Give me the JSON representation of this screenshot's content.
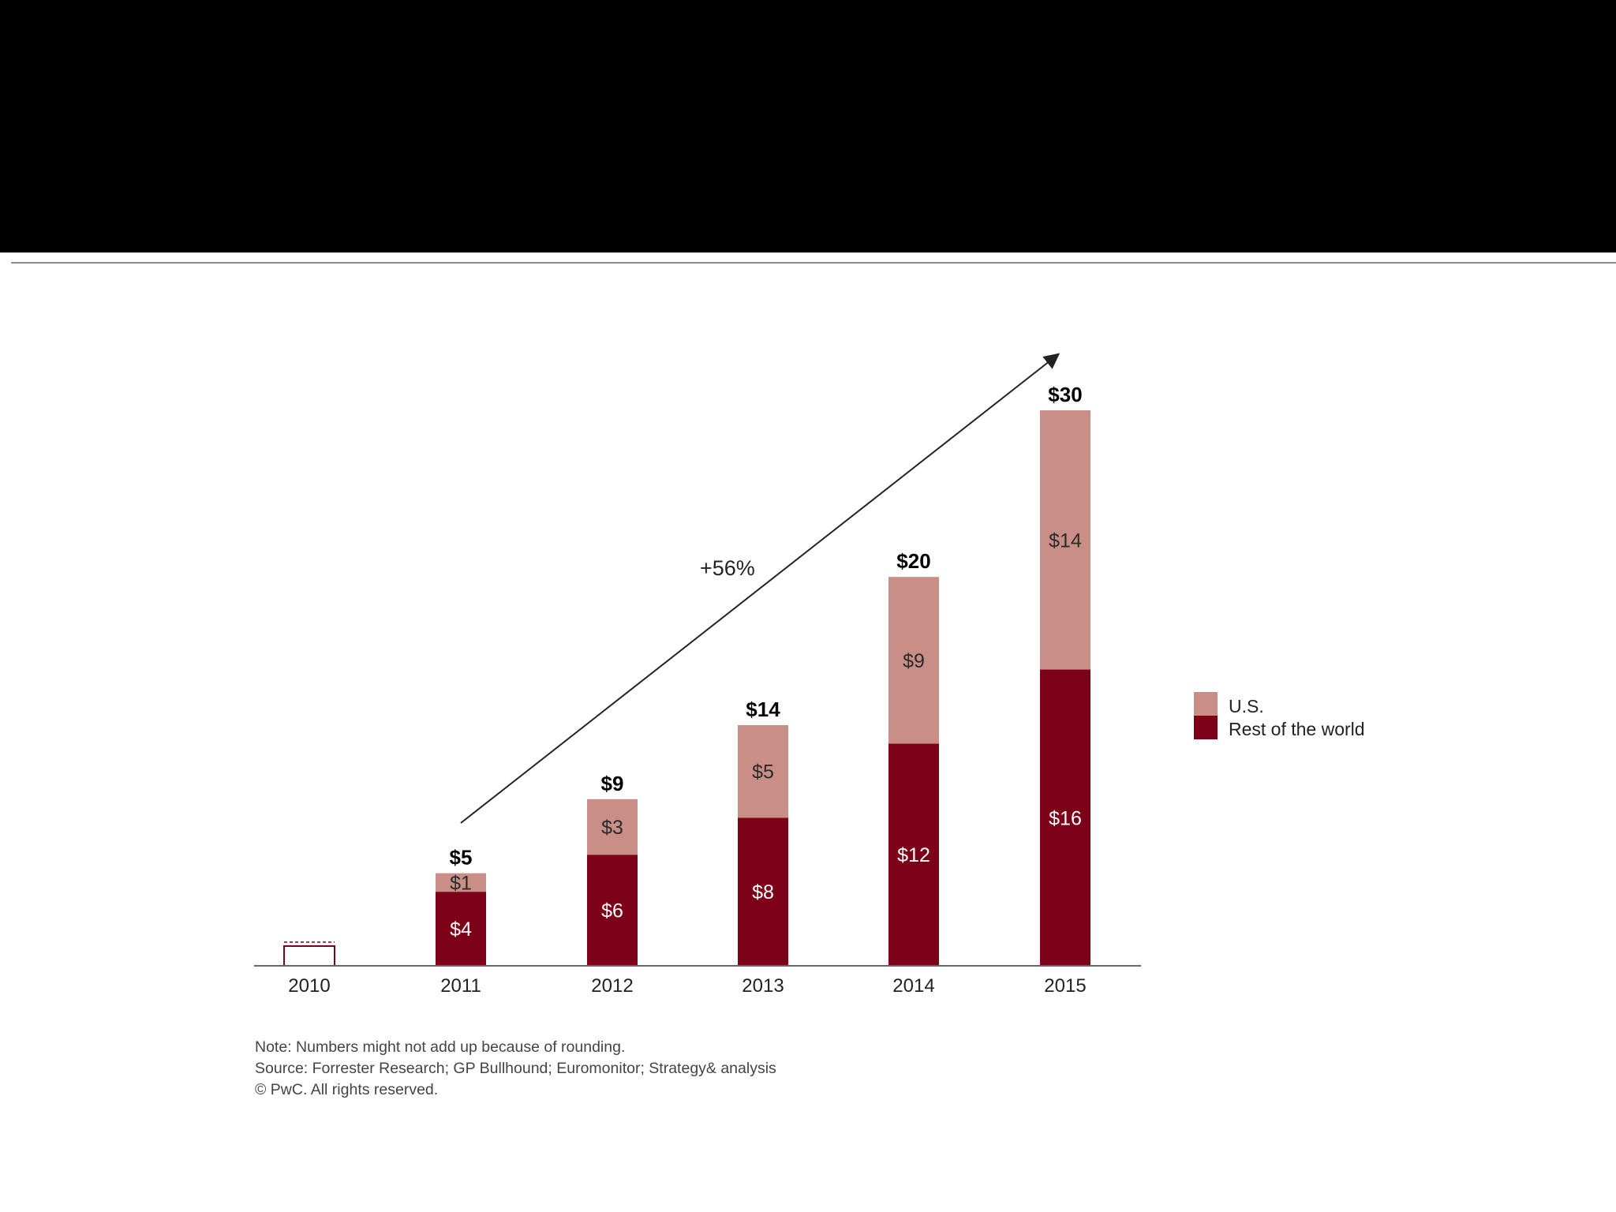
{
  "colors": {
    "header_band": "#000000",
    "us": "#c98f86",
    "rest_of_world": "#7b0018",
    "axis": "#666666"
  },
  "chart_data": {
    "type": "bar",
    "stacked": true,
    "categories": [
      "2010",
      "2011",
      "2012",
      "2013",
      "2014",
      "2015"
    ],
    "series": [
      {
        "name": "Rest of the world",
        "values": [
          null,
          4,
          6,
          8,
          12,
          16
        ],
        "labels": [
          "",
          "$4",
          "$6",
          "$8",
          "$12",
          "$16"
        ]
      },
      {
        "name": "U.S.",
        "values": [
          null,
          1,
          3,
          5,
          9,
          14
        ],
        "labels": [
          "",
          "$1",
          "$3",
          "$5",
          "$9",
          "$14"
        ]
      }
    ],
    "totals": [
      "",
      "$5",
      "$9",
      "$14",
      "$20",
      "$30"
    ],
    "ylim": [
      0,
      30
    ],
    "placeholder_category": "2010",
    "annotation": {
      "text": "+56%",
      "from_category": "2011",
      "to_category": "2015"
    },
    "legend": {
      "position": "right",
      "entries": [
        "U.S.",
        "Rest of the world"
      ]
    },
    "grid": false,
    "title": "",
    "xlabel": "",
    "ylabel": ""
  },
  "notes": [
    "Note: Numbers might not add up because of rounding.",
    "Source: Forrester Research; GP Bullhound; Euromonitor; Strategy& analysis",
    "© PwC. All rights reserved."
  ]
}
